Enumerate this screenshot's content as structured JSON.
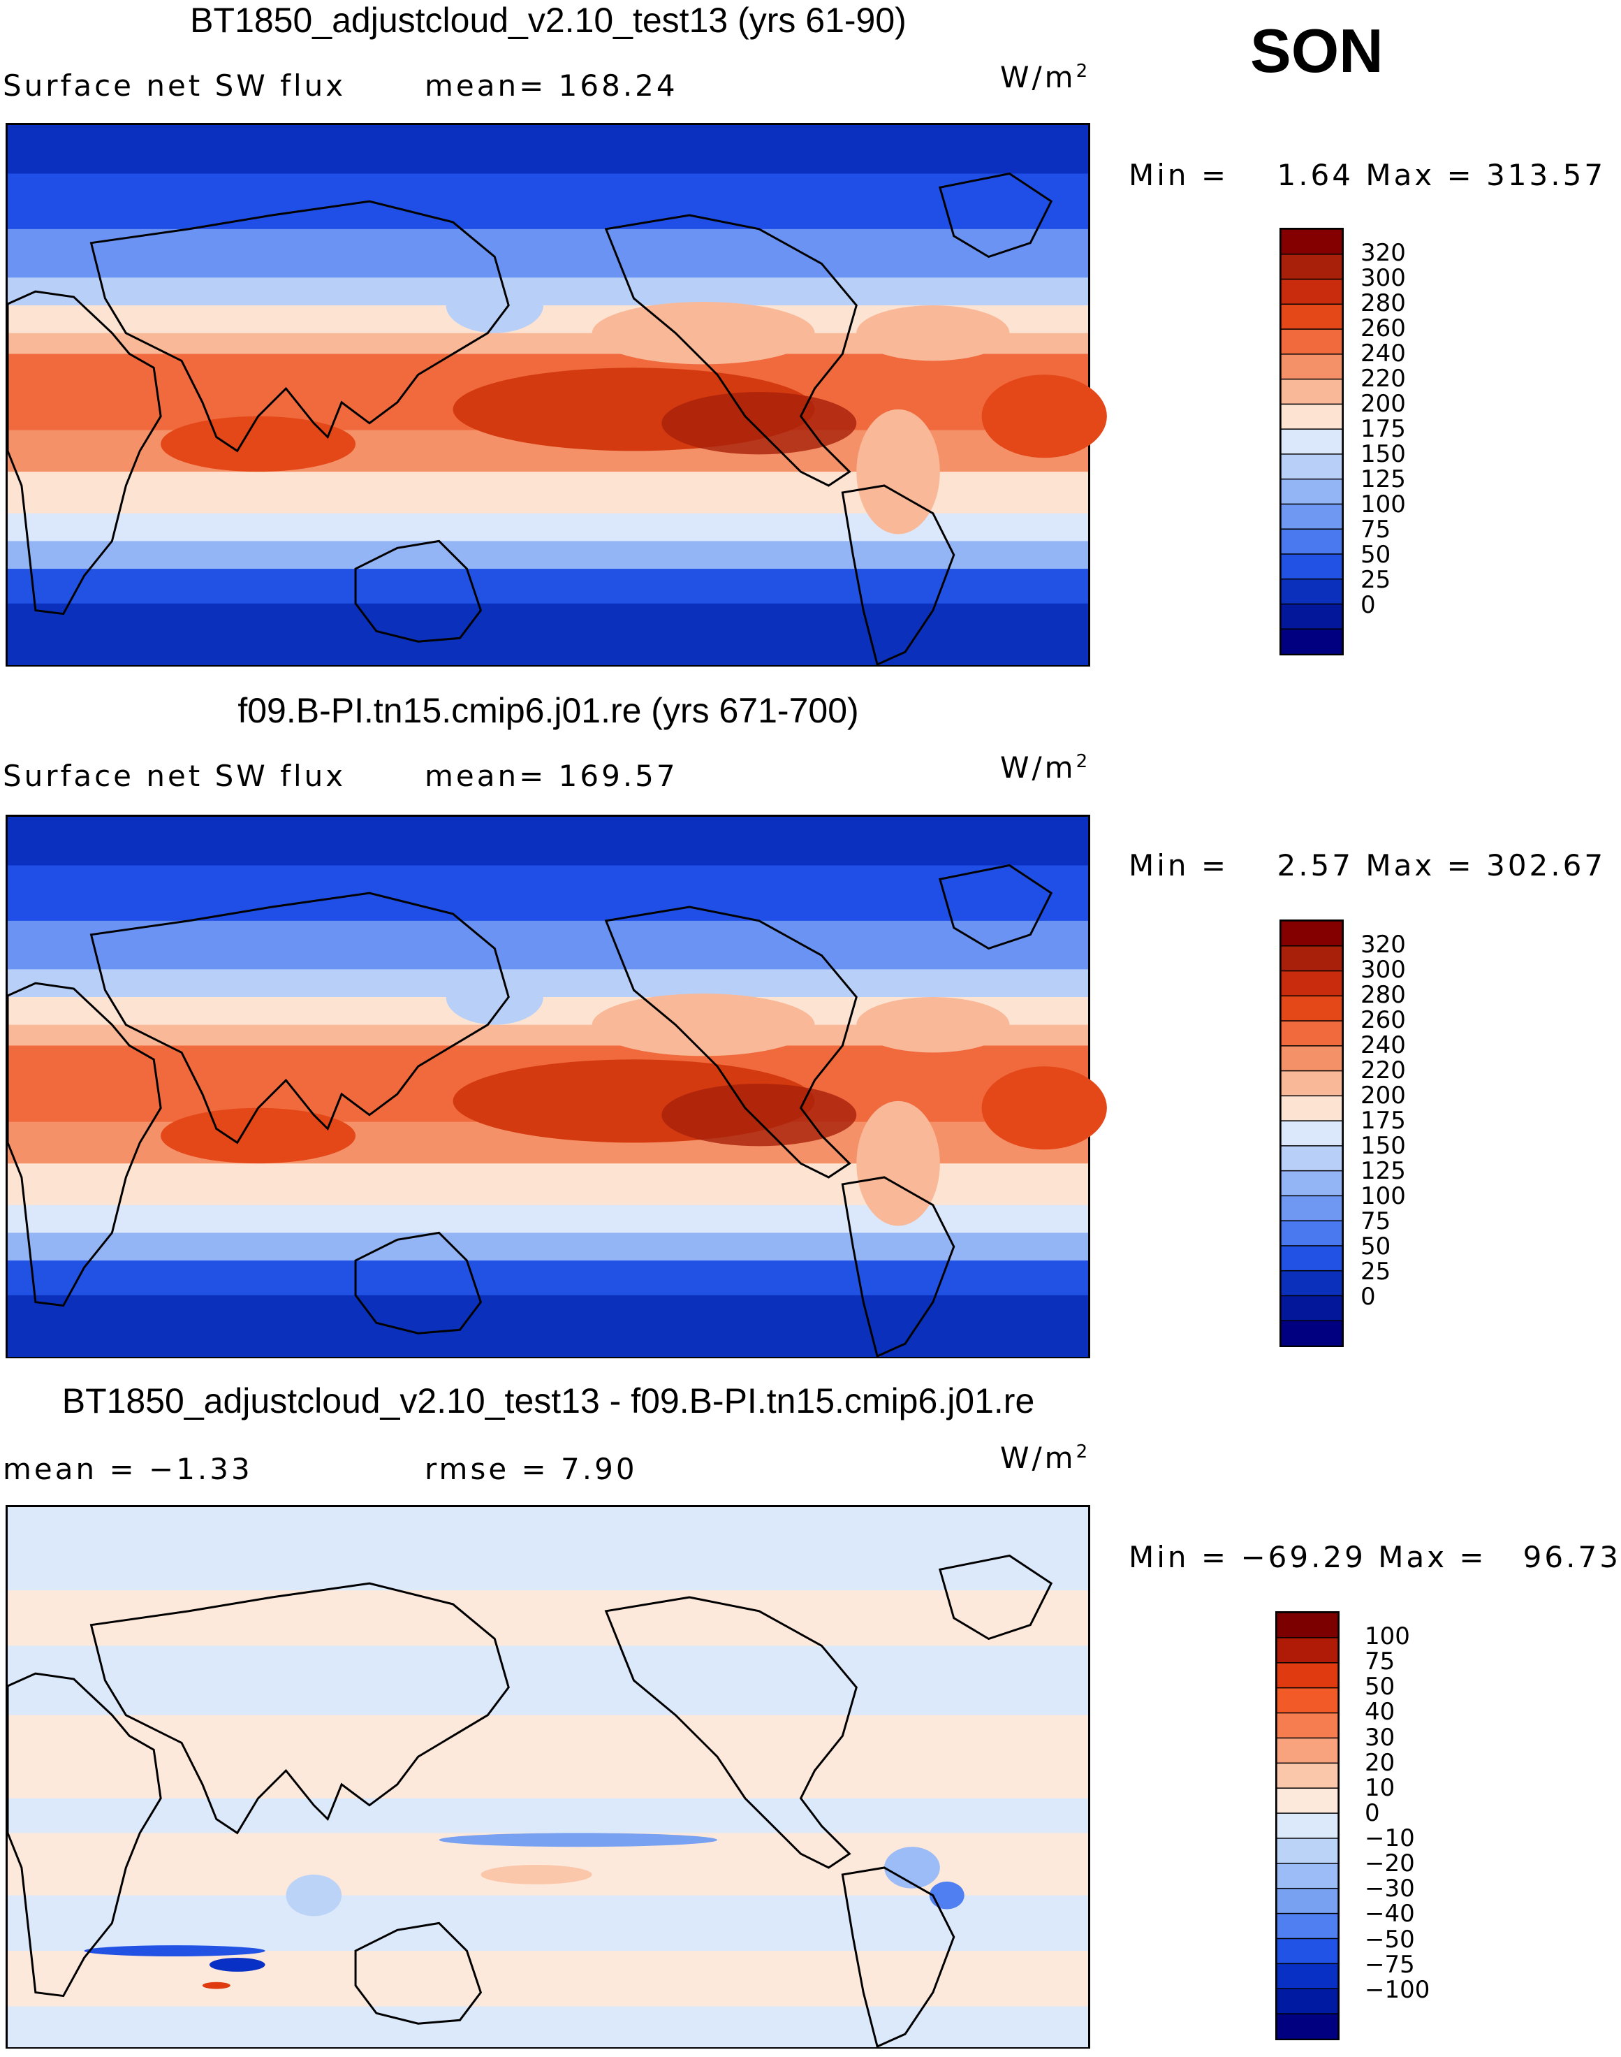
{
  "season": "SON",
  "panels": [
    {
      "title": "BT1850_adjustcloud_v2.10_test13 (yrs 61-90)",
      "left_label": "Surface net SW flux",
      "mid_label": "mean= 168.24",
      "units": "W/m",
      "units_sup": "2",
      "min_text": "Min =",
      "min_value": "1.64",
      "max_text": "Max =",
      "max_value": "313.57",
      "type": "abs"
    },
    {
      "title": "f09.B-PI.tn15.cmip6.j01.re (yrs 671-700)",
      "left_label": "Surface net SW flux",
      "mid_label": "mean= 169.57",
      "units": "W/m",
      "units_sup": "2",
      "min_text": "Min =",
      "min_value": "2.57",
      "max_text": "Max =",
      "max_value": "302.67",
      "type": "abs"
    },
    {
      "title": "BT1850_adjustcloud_v2.10_test13 - f09.B-PI.tn15.cmip6.j01.re",
      "left_label": "mean =  −1.33",
      "mid_label": "rmse =    7.90",
      "units": "W/m",
      "units_sup": "2",
      "min_text": "Min =",
      "min_value": "−69.29",
      "max_text": "Max =",
      "max_value": "96.73",
      "type": "diff"
    }
  ],
  "chart_data": [
    {
      "type": "heatmap",
      "title": "BT1850_adjustcloud_v2.10_test13 (yrs 61-90)",
      "variable": "Surface net SW flux",
      "units": "W/m2",
      "mean": 168.24,
      "min": 1.64,
      "max": 313.57,
      "colorbar_levels": [
        0,
        25,
        50,
        75,
        100,
        125,
        150,
        175,
        200,
        220,
        240,
        260,
        280,
        300,
        320
      ],
      "colorbar_labels": [
        "320",
        "300",
        "280",
        "260",
        "240",
        "220",
        "200",
        "175",
        "150",
        "125",
        "100",
        "75",
        "50",
        "25",
        "0"
      ],
      "colors": [
        "#000080",
        "#0a22a8",
        "#0b36cc",
        "#1d4ee8",
        "#3e6ef0",
        "#6a93f4",
        "#9dbbf6",
        "#c8dcf7",
        "#e6eefa",
        "#fbe0cd",
        "#f8bb98",
        "#f59b72",
        "#f2764c",
        "#ec5426",
        "#d43a10",
        "#a8200a",
        "#840000"
      ]
    },
    {
      "type": "heatmap",
      "title": "f09.B-PI.tn15.cmip6.j01.re (yrs 671-700)",
      "variable": "Surface net SW flux",
      "units": "W/m2",
      "mean": 169.57,
      "min": 2.57,
      "max": 302.67,
      "colorbar_levels": [
        0,
        25,
        50,
        75,
        100,
        125,
        150,
        175,
        200,
        220,
        240,
        260,
        280,
        300,
        320
      ],
      "colorbar_labels": [
        "320",
        "300",
        "280",
        "260",
        "240",
        "220",
        "200",
        "175",
        "150",
        "125",
        "100",
        "75",
        "50",
        "25",
        "0"
      ]
    },
    {
      "type": "heatmap",
      "title": "BT1850_adjustcloud_v2.10_test13 - f09.B-PI.tn15.cmip6.j01.re",
      "units": "W/m2",
      "mean": -1.33,
      "rmse": 7.9,
      "min": -69.29,
      "max": 96.73,
      "colorbar_levels": [
        -100,
        -75,
        -50,
        -40,
        -30,
        -20,
        -10,
        0,
        10,
        20,
        30,
        40,
        50,
        75,
        100
      ],
      "colorbar_labels": [
        "100",
        "75",
        "50",
        "40",
        "30",
        "20",
        "10",
        "0",
        "−10",
        "−20",
        "−30",
        "−40",
        "−50",
        "−75",
        "−100"
      ]
    }
  ]
}
